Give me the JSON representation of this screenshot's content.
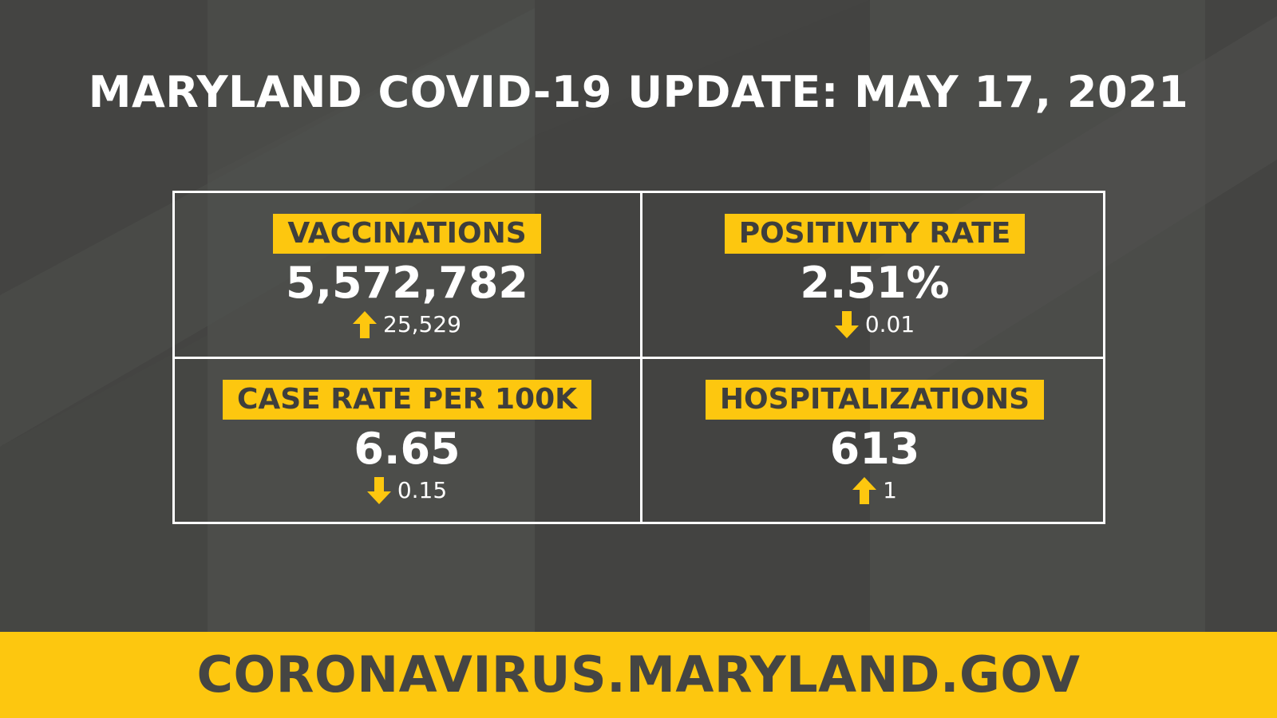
{
  "title": "MARYLAND COVID-19 UPDATE: MAY 17, 2021",
  "colors": {
    "accent": "#fdc70f",
    "background": "#444442",
    "text": "#ffffff",
    "label_text": "#3e3e3c"
  },
  "metrics": {
    "vaccinations": {
      "label": "VACCINATIONS",
      "value": "5,572,782",
      "change": "25,529",
      "direction": "up",
      "icon": "arrow-up-icon"
    },
    "positivity_rate": {
      "label": "POSITIVITY RATE",
      "value": "2.51%",
      "change": "0.01",
      "direction": "down",
      "icon": "arrow-down-icon"
    },
    "case_rate": {
      "label": "CASE RATE PER 100K",
      "value": "6.65",
      "change": "0.15",
      "direction": "down",
      "icon": "arrow-down-icon"
    },
    "hospitalizations": {
      "label": "HOSPITALIZATIONS",
      "value": "613",
      "change": "1",
      "direction": "up",
      "icon": "arrow-up-icon"
    }
  },
  "footer": {
    "url": "CORONAVIRUS.MARYLAND.GOV"
  }
}
